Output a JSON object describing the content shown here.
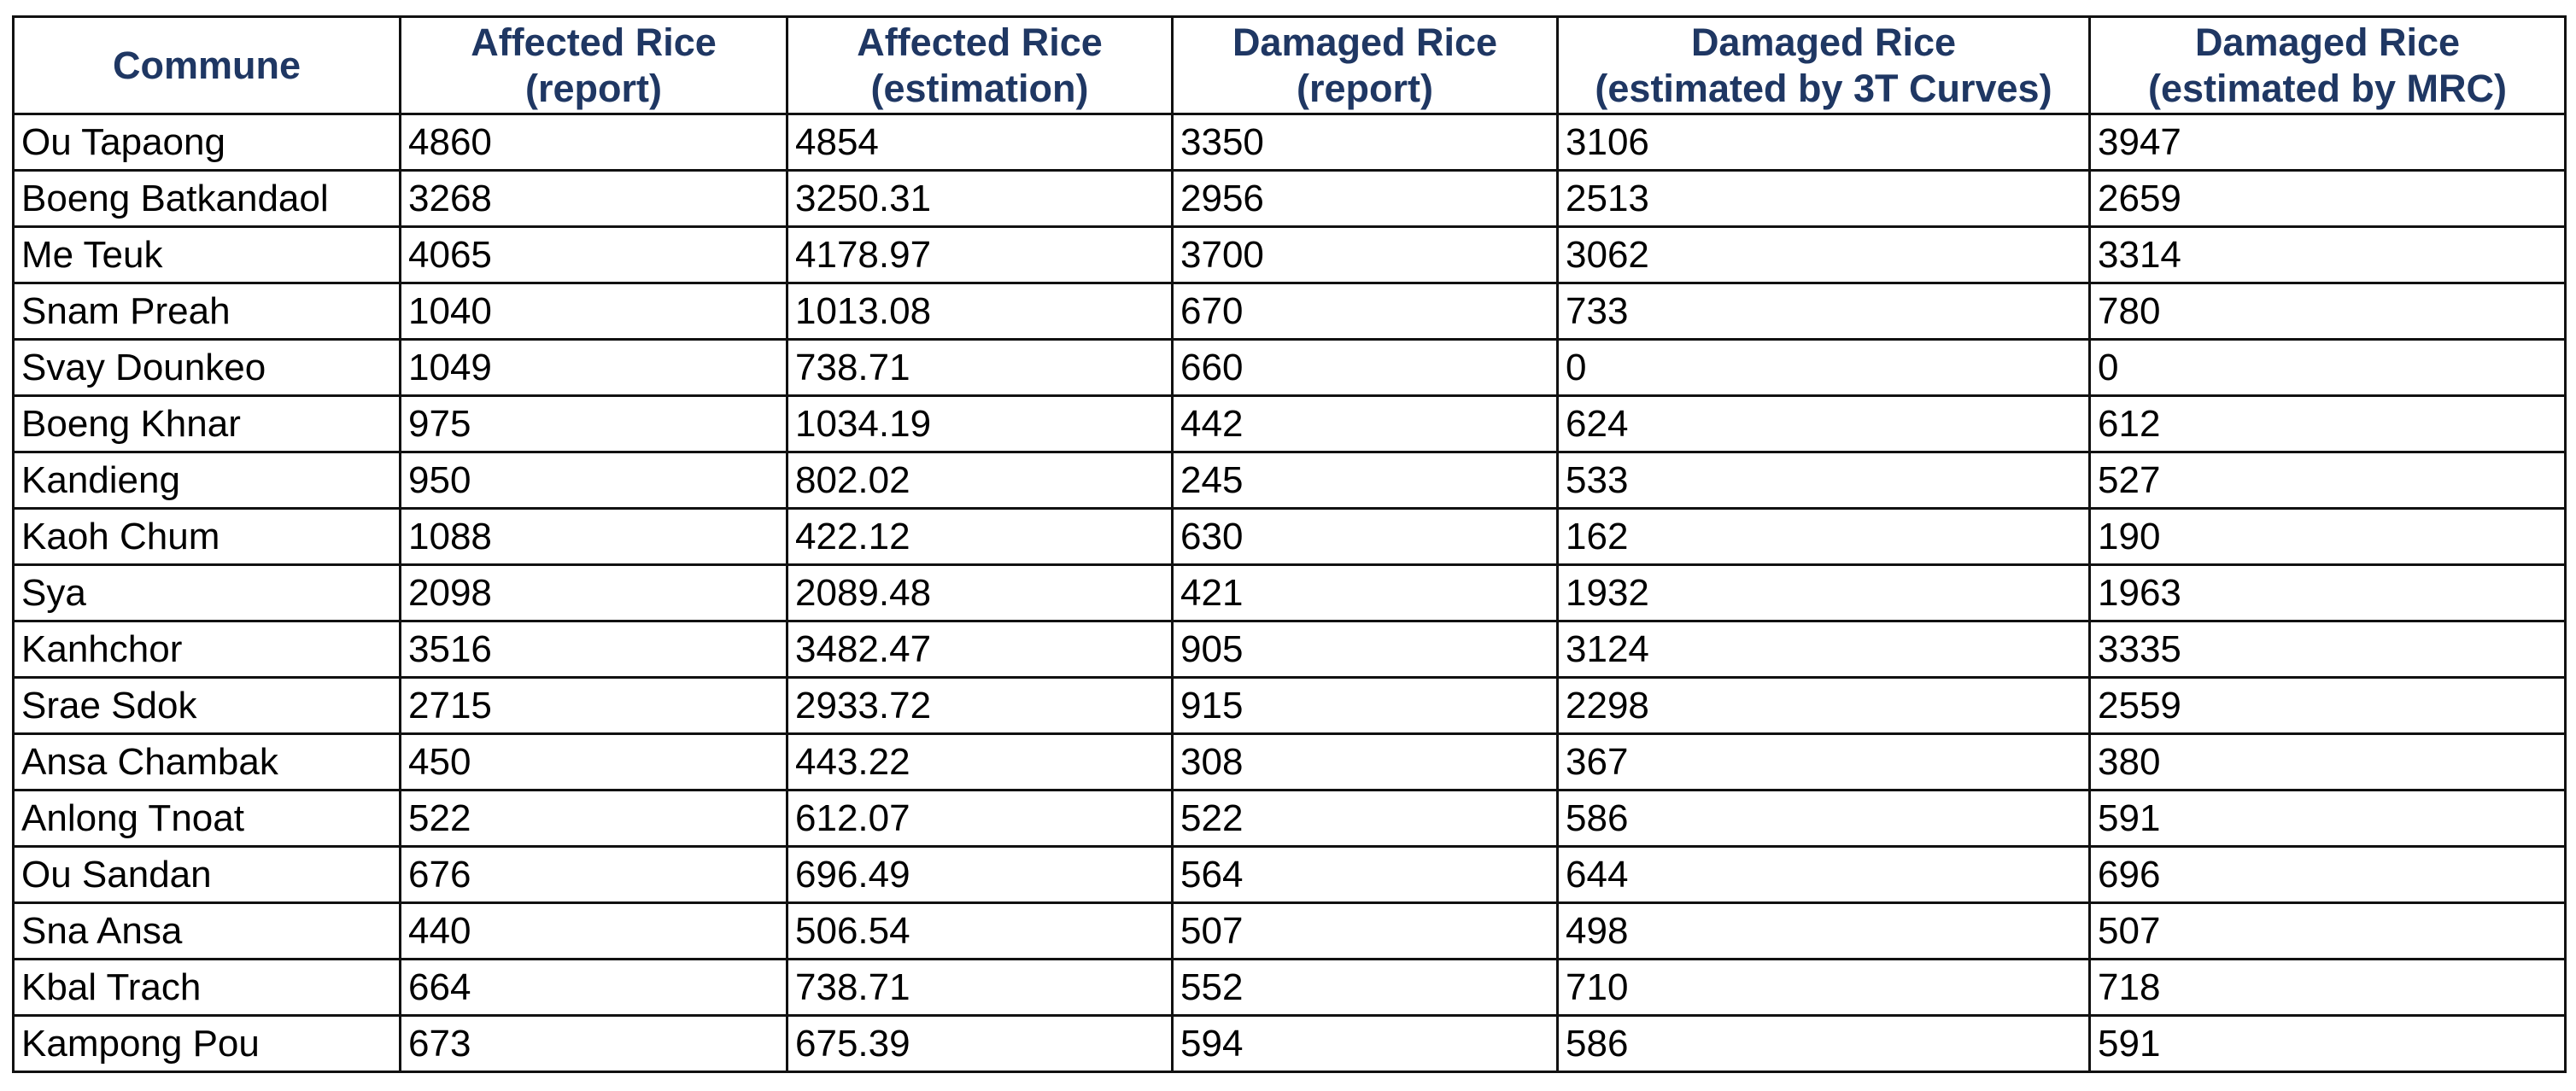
{
  "table": {
    "colors": {
      "header_text": "#1f3763",
      "body_text": "#000000",
      "border": "#111111"
    },
    "columns": [
      {
        "lines": [
          "Commune"
        ]
      },
      {
        "lines": [
          "Affected Rice",
          "(report)"
        ]
      },
      {
        "lines": [
          "Affected Rice",
          "(estimation)"
        ]
      },
      {
        "lines": [
          "Damaged Rice",
          "(report)"
        ]
      },
      {
        "lines": [
          "Damaged Rice",
          "(estimated by 3T Curves)"
        ]
      },
      {
        "lines": [
          "Damaged Rice",
          "(estimated by MRC)"
        ]
      }
    ],
    "rows": [
      [
        "Ou Tapaong",
        "4860",
        "4854",
        "3350",
        "3106",
        "3947"
      ],
      [
        "Boeng Batkandaol",
        "3268",
        "3250.31",
        "2956",
        "2513",
        "2659"
      ],
      [
        "Me Teuk",
        "4065",
        "4178.97",
        "3700",
        "3062",
        "3314"
      ],
      [
        "Snam Preah",
        "1040",
        "1013.08",
        "670",
        "733",
        "780"
      ],
      [
        "Svay Dounkeo",
        "1049",
        "738.71",
        "660",
        "0",
        "0"
      ],
      [
        "Boeng Khnar",
        "975",
        "1034.19",
        "442",
        "624",
        "612"
      ],
      [
        "Kandieng",
        "950",
        "802.02",
        "245",
        "533",
        "527"
      ],
      [
        "Kaoh Chum",
        "1088",
        "422.12",
        "630",
        "162",
        "190"
      ],
      [
        "Sya",
        "2098",
        "2089.48",
        "421",
        "1932",
        "1963"
      ],
      [
        "Kanhchor",
        "3516",
        "3482.47",
        "905",
        "3124",
        "3335"
      ],
      [
        "Srae Sdok",
        "2715",
        "2933.72",
        "915",
        "2298",
        "2559"
      ],
      [
        "Ansa Chambak",
        "450",
        "443.22",
        "308",
        "367",
        "380"
      ],
      [
        "Anlong Tnoat",
        "522",
        "612.07",
        "522",
        "586",
        "591"
      ],
      [
        "Ou Sandan",
        "676",
        "696.49",
        "564",
        "644",
        "696"
      ],
      [
        "Sna Ansa",
        "440",
        "506.54",
        "507",
        "498",
        "507"
      ],
      [
        "Kbal Trach",
        "664",
        "738.71",
        "552",
        "710",
        "718"
      ],
      [
        "Kampong Pou",
        "673",
        "675.39",
        "594",
        "586",
        "591"
      ]
    ]
  }
}
